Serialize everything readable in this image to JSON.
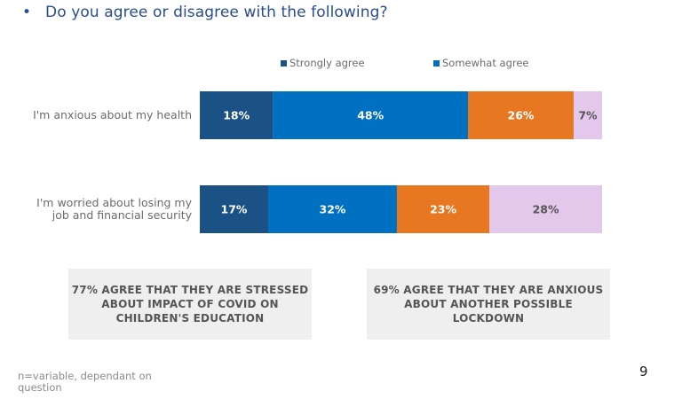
{
  "slide": {
    "title": "Do you agree or disagree with the following?",
    "bullet": "•",
    "footnote": "n=variable, dependant on question",
    "page_number": "9"
  },
  "chart_data": {
    "type": "bar",
    "orientation": "horizontal",
    "stacked": true,
    "normalized": true,
    "title": "Do you agree or disagree with the following?",
    "categories": [
      "I'm anxious about my health",
      "I'm worried about losing my job and financial security"
    ],
    "category_lines": [
      [
        "I'm anxious about my health"
      ],
      [
        "I'm worried about losing my",
        "job and financial security"
      ]
    ],
    "series": [
      {
        "name": "Strongly agree",
        "color": "#1a5286",
        "label_color": "#ffffff",
        "values": [
          18,
          17
        ]
      },
      {
        "name": "Somewhat agree",
        "color": "#0070c0",
        "label_color": "#ffffff",
        "values": [
          48,
          32
        ]
      },
      {
        "name": "",
        "color": "#e87722",
        "label_color": "#ffffff",
        "values": [
          26,
          23
        ]
      },
      {
        "name": "",
        "color": "#e3c8ec",
        "label_color": "#555555",
        "values": [
          7,
          28
        ]
      }
    ],
    "legend": {
      "position": "top",
      "entries": [
        "Strongly agree",
        "Somewhat agree"
      ]
    },
    "value_suffix": "%",
    "xlim": [
      0,
      99
    ],
    "xlabel": "",
    "ylabel": ""
  },
  "callouts": [
    {
      "lines": [
        "77% AGREE THAT THEY ARE STRESSED",
        "ABOUT IMPACT OF COVID ON",
        "CHILDREN'S EDUCATION"
      ]
    },
    {
      "lines": [
        "69% AGREE THAT THEY ARE ANXIOUS",
        "ABOUT ANOTHER POSSIBLE LOCKDOWN"
      ]
    }
  ]
}
